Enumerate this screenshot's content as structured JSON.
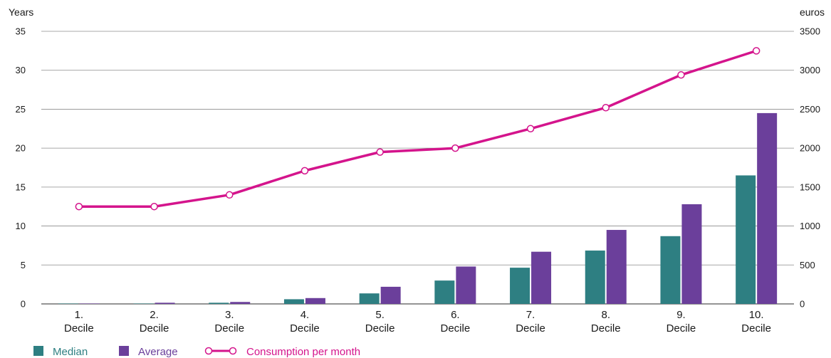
{
  "chart_data": {
    "type": "bar",
    "categories": [
      [
        "1.",
        "Decile"
      ],
      [
        "2.",
        "Decile"
      ],
      [
        "3.",
        "Decile"
      ],
      [
        "4.",
        "Decile"
      ],
      [
        "5.",
        "Decile"
      ],
      [
        "6.",
        "Decile"
      ],
      [
        "7.",
        "Decile"
      ],
      [
        "8.",
        "Decile"
      ],
      [
        "9.",
        "Decile"
      ],
      [
        "10.",
        "Decile"
      ]
    ],
    "y_left": {
      "label": "Years",
      "ylim": [
        0,
        35
      ],
      "ticks": [
        0,
        5,
        10,
        15,
        20,
        25,
        30,
        35
      ]
    },
    "y_right": {
      "label": "euros",
      "ylim": [
        0,
        3500
      ],
      "ticks": [
        0,
        500,
        1000,
        1500,
        2000,
        2500,
        3000,
        3500
      ]
    },
    "series": [
      {
        "name": "Median",
        "type": "bar",
        "axis": "left",
        "color": "#2e7f82",
        "values": [
          0.05,
          0.05,
          0.15,
          0.6,
          1.35,
          3.0,
          4.65,
          6.85,
          8.7,
          16.5
        ]
      },
      {
        "name": "Average",
        "type": "bar",
        "axis": "left",
        "color": "#6b3f9b",
        "values": [
          0.05,
          0.15,
          0.25,
          0.75,
          2.2,
          4.8,
          6.7,
          9.5,
          12.8,
          24.5
        ]
      },
      {
        "name": "Consumption per month",
        "type": "line",
        "axis": "right",
        "color": "#d4148c",
        "values": [
          1250,
          1250,
          1400,
          1710,
          1950,
          2000,
          2250,
          2520,
          2940,
          3250
        ]
      }
    ],
    "grid": true,
    "legend_position": "bottom-left"
  }
}
